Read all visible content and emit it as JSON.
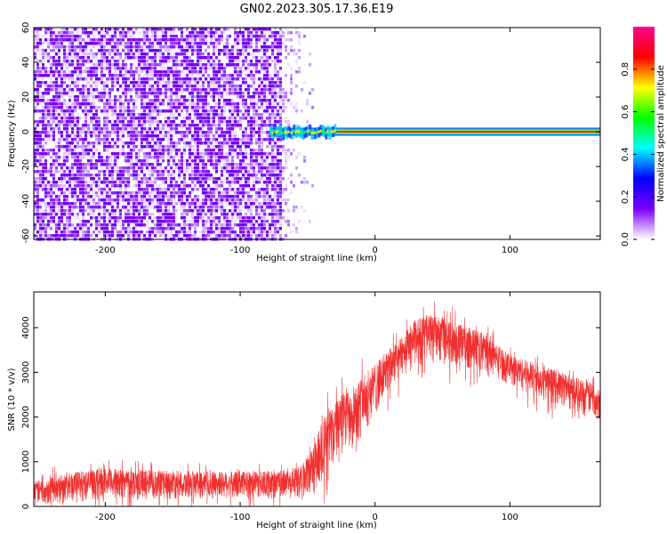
{
  "title": "GN02.2023.305.17.36.E19",
  "chart_data": [
    {
      "type": "heatmap",
      "xlabel": "Height of straight line (km)",
      "ylabel": "Frequency (Hz)",
      "xlim": [
        -253,
        167
      ],
      "ylim": [
        -62,
        60
      ],
      "x_ticks": [
        -200,
        -100,
        0,
        100
      ],
      "x_tick_labels": [
        "-200",
        "-100",
        "0",
        "100"
      ],
      "y_ticks": [
        -60,
        -40,
        -20,
        0,
        20,
        40,
        60
      ],
      "y_tick_labels": [
        "-60",
        "-40",
        "-20",
        "0",
        "20",
        "40",
        "60"
      ],
      "noise_region_x": [
        -253,
        -70
      ],
      "noise_fringe_x": [
        -70,
        -45
      ],
      "signal_band": {
        "y": 0,
        "half_width": 2,
        "x_start": -78,
        "x_end": 167
      },
      "colorbar": {
        "label": "Normalized spectral amplitude",
        "range": [
          0,
          1
        ],
        "ticks": [
          0.0,
          0.2,
          0.4,
          0.6,
          0.8
        ],
        "tick_labels": [
          "0.0",
          "0.2",
          "0.4",
          "0.6",
          "0.8"
        ],
        "colors": [
          "#ffffff",
          "#7b00ff",
          "#0000ff",
          "#00ffff",
          "#00ff00",
          "#ffff00",
          "#ff0000",
          "#ff0090"
        ]
      }
    },
    {
      "type": "line",
      "xlabel": "Height of straight line (km)",
      "ylabel": "SNR (10 * v/v)",
      "xlim": [
        -253,
        167
      ],
      "ylim": [
        0,
        4800
      ],
      "x_ticks": [
        -200,
        -100,
        0,
        100
      ],
      "x_tick_labels": [
        "-200",
        "-100",
        "0",
        "100"
      ],
      "y_ticks": [
        0,
        1000,
        2000,
        3000,
        4000
      ],
      "y_tick_labels": [
        "0",
        "1000",
        "2000",
        "3000",
        "4000"
      ],
      "color": "#f03030",
      "envelope": {
        "x": [
          -253,
          -230,
          -200,
          -150,
          -100,
          -70,
          -55,
          -45,
          -40,
          -30,
          -20,
          -10,
          0,
          10,
          20,
          30,
          40,
          50,
          60,
          80,
          100,
          120,
          140,
          167
        ],
        "lower": [
          0,
          80,
          150,
          150,
          150,
          150,
          150,
          200,
          500,
          900,
          1200,
          1500,
          2000,
          2500,
          2900,
          3100,
          3200,
          3200,
          3100,
          3000,
          2700,
          2400,
          2200,
          1900
        ],
        "upper": [
          550,
          750,
          850,
          800,
          780,
          800,
          900,
          1400,
          1900,
          2300,
          2700,
          2900,
          3200,
          3500,
          3800,
          4200,
          4300,
          4200,
          4100,
          3900,
          3400,
          3200,
          3000,
          2700
        ]
      }
    }
  ]
}
